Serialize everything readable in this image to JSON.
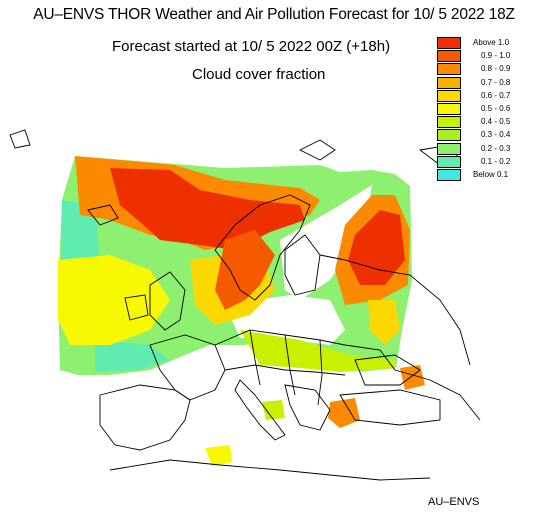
{
  "header": {
    "title": "AU–ENVS THOR Weather and Air Pollution Forecast for 10/ 5 2022  18Z",
    "subtitle": "Forecast started at 10/ 5 2022  00Z (+18h)",
    "field": "Cloud cover fraction"
  },
  "legend": {
    "items": [
      {
        "label": "Above   1.0",
        "color": "#ee3000"
      },
      {
        "label": "0.9  -  1.0",
        "color": "#f55a00"
      },
      {
        "label": "0.8  -  0.9",
        "color": "#fb8a00"
      },
      {
        "label": "0.7  -  0.8",
        "color": "#fbb000"
      },
      {
        "label": "0.6  -  0.7",
        "color": "#fcd800"
      },
      {
        "label": "0.5  -  0.6",
        "color": "#f8f800"
      },
      {
        "label": "0.4  -  0.5",
        "color": "#c8f000"
      },
      {
        "label": "0.3  -  0.4",
        "color": "#a8ee20"
      },
      {
        "label": "0.2  -  0.3",
        "color": "#8ef070"
      },
      {
        "label": "0.1  -  0.2",
        "color": "#60ecb0"
      },
      {
        "label": "Below   0.1",
        "color": "#40e8e0"
      }
    ]
  },
  "footer": {
    "credit": "AU–ENVS"
  }
}
